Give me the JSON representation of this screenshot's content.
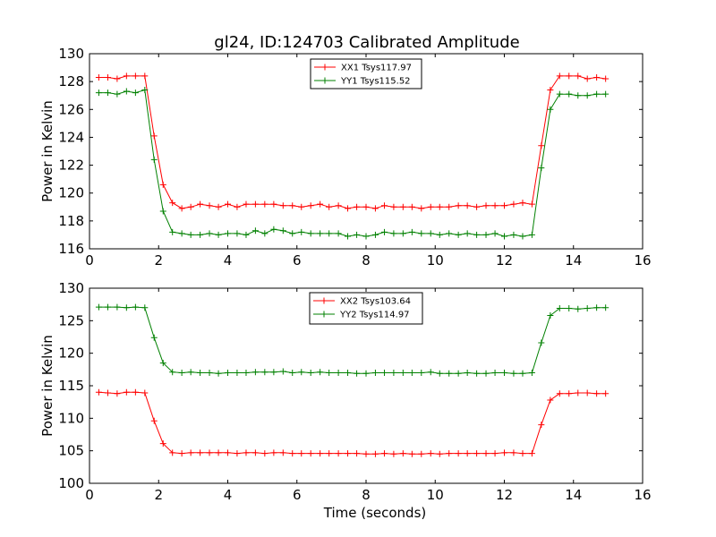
{
  "figure": {
    "title": "gl24, ID:124703 Calibrated Amplitude"
  },
  "chart_data": [
    {
      "type": "line",
      "title": "gl24, ID:124703 Calibrated Amplitude",
      "xlabel": "",
      "ylabel": "Power in Kelvin",
      "xlim": [
        0,
        16
      ],
      "ylim": [
        116,
        130
      ],
      "xticks": [
        0,
        2,
        4,
        6,
        8,
        10,
        12,
        14,
        16
      ],
      "yticks": [
        116,
        118,
        120,
        122,
        124,
        126,
        128,
        130
      ],
      "grid": false,
      "legend_position": "top-center",
      "x": [
        0.27,
        0.53,
        0.8,
        1.07,
        1.33,
        1.6,
        1.87,
        2.13,
        2.4,
        2.67,
        2.93,
        3.2,
        3.47,
        3.73,
        4.0,
        4.27,
        4.53,
        4.8,
        5.07,
        5.33,
        5.6,
        5.87,
        6.13,
        6.4,
        6.67,
        6.93,
        7.2,
        7.47,
        7.73,
        8.0,
        8.27,
        8.53,
        8.8,
        9.07,
        9.33,
        9.6,
        9.87,
        10.13,
        10.4,
        10.67,
        10.93,
        11.2,
        11.47,
        11.73,
        12.0,
        12.27,
        12.53,
        12.8,
        13.07,
        13.33,
        13.6,
        13.87,
        14.13,
        14.4,
        14.67,
        14.93
      ],
      "series": [
        {
          "name": "XX1 Tsys117.97",
          "color": "#ff0000",
          "values": [
            128.3,
            128.3,
            128.2,
            128.4,
            128.4,
            128.4,
            124.1,
            120.6,
            119.3,
            118.9,
            119.0,
            119.2,
            119.1,
            119.0,
            119.2,
            119.0,
            119.2,
            119.2,
            119.2,
            119.2,
            119.1,
            119.1,
            119.0,
            119.1,
            119.2,
            119.0,
            119.1,
            118.9,
            119.0,
            119.0,
            118.9,
            119.1,
            119.0,
            119.0,
            119.0,
            118.9,
            119.0,
            119.0,
            119.0,
            119.1,
            119.1,
            119.0,
            119.1,
            119.1,
            119.1,
            119.2,
            119.3,
            119.2,
            123.4,
            127.4,
            128.4,
            128.4,
            128.4,
            128.2,
            128.3,
            128.2
          ]
        },
        {
          "name": "YY1 Tsys115.52",
          "color": "#008000",
          "values": [
            127.2,
            127.2,
            127.1,
            127.3,
            127.2,
            127.4,
            122.4,
            118.7,
            117.2,
            117.1,
            117.0,
            117.0,
            117.1,
            117.0,
            117.1,
            117.1,
            117.0,
            117.3,
            117.1,
            117.4,
            117.3,
            117.1,
            117.2,
            117.1,
            117.1,
            117.1,
            117.1,
            116.9,
            117.0,
            116.9,
            117.0,
            117.2,
            117.1,
            117.1,
            117.2,
            117.1,
            117.1,
            117.0,
            117.1,
            117.0,
            117.1,
            117.0,
            117.0,
            117.1,
            116.9,
            117.0,
            116.9,
            117.0,
            121.8,
            126.0,
            127.1,
            127.1,
            127.0,
            127.0,
            127.1,
            127.1
          ]
        }
      ]
    },
    {
      "type": "line",
      "title": "",
      "xlabel": "Time (seconds)",
      "ylabel": "Power in Kelvin",
      "xlim": [
        0,
        16
      ],
      "ylim": [
        100,
        130
      ],
      "xticks": [
        0,
        2,
        4,
        6,
        8,
        10,
        12,
        14,
        16
      ],
      "yticks": [
        100,
        105,
        110,
        115,
        120,
        125,
        130
      ],
      "grid": false,
      "legend_position": "top-center",
      "x": [
        0.27,
        0.53,
        0.8,
        1.07,
        1.33,
        1.6,
        1.87,
        2.13,
        2.4,
        2.67,
        2.93,
        3.2,
        3.47,
        3.73,
        4.0,
        4.27,
        4.53,
        4.8,
        5.07,
        5.33,
        5.6,
        5.87,
        6.13,
        6.4,
        6.67,
        6.93,
        7.2,
        7.47,
        7.73,
        8.0,
        8.27,
        8.53,
        8.8,
        9.07,
        9.33,
        9.6,
        9.87,
        10.13,
        10.4,
        10.67,
        10.93,
        11.2,
        11.47,
        11.73,
        12.0,
        12.27,
        12.53,
        12.8,
        13.07,
        13.33,
        13.6,
        13.87,
        14.13,
        14.4,
        14.67,
        14.93
      ],
      "series": [
        {
          "name": "XX2 Tsys103.64",
          "color": "#ff0000",
          "values": [
            114.0,
            113.9,
            113.8,
            114.0,
            114.0,
            113.9,
            109.6,
            106.1,
            104.7,
            104.6,
            104.7,
            104.7,
            104.7,
            104.7,
            104.7,
            104.6,
            104.7,
            104.7,
            104.6,
            104.7,
            104.7,
            104.6,
            104.6,
            104.6,
            104.6,
            104.6,
            104.6,
            104.6,
            104.6,
            104.5,
            104.5,
            104.6,
            104.5,
            104.6,
            104.5,
            104.5,
            104.6,
            104.5,
            104.6,
            104.6,
            104.6,
            104.6,
            104.6,
            104.6,
            104.7,
            104.7,
            104.6,
            104.6,
            109.0,
            112.8,
            113.8,
            113.8,
            113.9,
            113.9,
            113.8,
            113.8
          ]
        },
        {
          "name": "YY2 Tsys114.97",
          "color": "#008000",
          "values": [
            127.1,
            127.1,
            127.1,
            127.0,
            127.1,
            127.0,
            122.4,
            118.5,
            117.1,
            117.0,
            117.1,
            117.0,
            117.0,
            116.9,
            117.0,
            117.0,
            117.0,
            117.1,
            117.1,
            117.1,
            117.2,
            117.0,
            117.1,
            117.0,
            117.1,
            117.0,
            117.0,
            117.0,
            116.9,
            116.9,
            117.0,
            117.0,
            117.0,
            117.0,
            117.0,
            117.0,
            117.1,
            116.9,
            116.9,
            116.9,
            117.0,
            116.9,
            116.9,
            117.0,
            117.0,
            116.9,
            116.9,
            117.0,
            121.6,
            125.8,
            126.9,
            126.9,
            126.8,
            126.9,
            127.0,
            127.0
          ]
        }
      ]
    }
  ]
}
